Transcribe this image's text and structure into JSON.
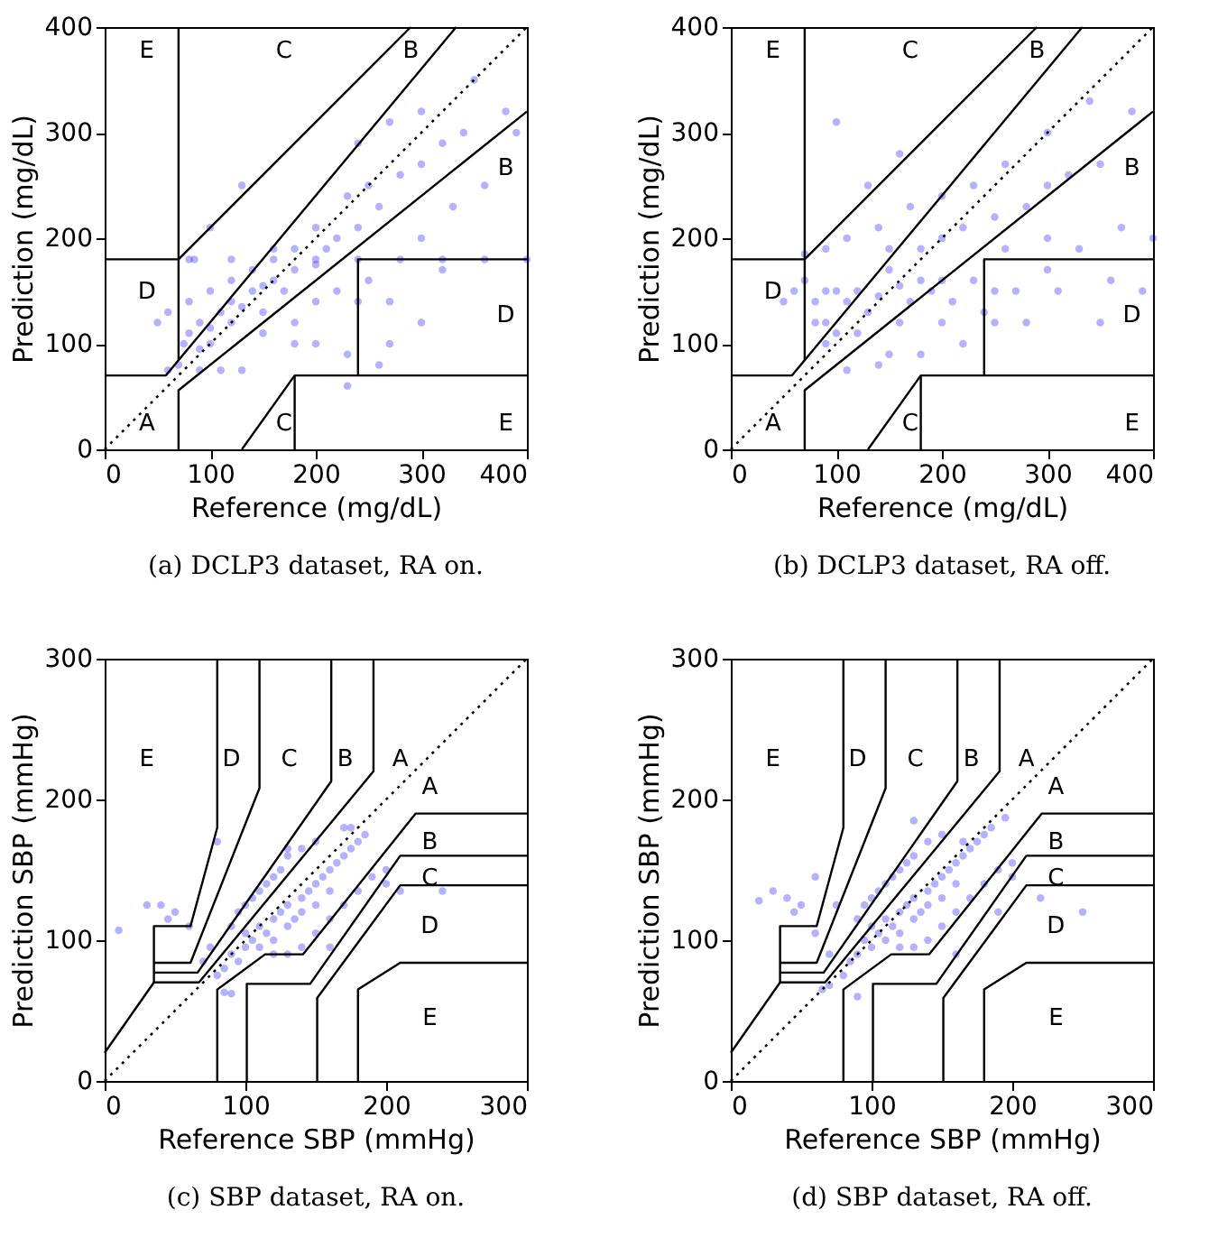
{
  "chart_data": [
    {
      "type": "scatter",
      "title": "(a) DCLP3 dataset, RA on.",
      "xlabel": "Reference (mg/dL)",
      "ylabel": "Prediction (mg/dL)",
      "xlim": [
        0,
        400
      ],
      "ylim": [
        0,
        400
      ],
      "xticks": [
        0,
        100,
        200,
        300,
        400
      ],
      "yticks": [
        0,
        100,
        200,
        300,
        400
      ],
      "series": [
        {
          "color": "#0000ff",
          "marker": "circle",
          "x": [
            80,
            90,
            100,
            110,
            120,
            130,
            140,
            150,
            160,
            170,
            180,
            100,
            90,
            120,
            150,
            200,
            210,
            220,
            240,
            260,
            280,
            300,
            320,
            340,
            300,
            250,
            230,
            200,
            180,
            160,
            140,
            120,
            100,
            80,
            60,
            50,
            75,
            70,
            90,
            110,
            130,
            60,
            150,
            180,
            200,
            220,
            240,
            250,
            270,
            200,
            230,
            180,
            80,
            120,
            160,
            200,
            240,
            280,
            320,
            360,
            400,
            350,
            380,
            330,
            360,
            390,
            300,
            270,
            240,
            130,
            100,
            85,
            270,
            300,
            260,
            230,
            320
          ],
          "values": [
            110,
            120,
            115,
            130,
            140,
            135,
            150,
            155,
            160,
            150,
            170,
            100,
            95,
            120,
            130,
            175,
            190,
            200,
            210,
            230,
            260,
            270,
            290,
            300,
            320,
            250,
            240,
            210,
            190,
            190,
            170,
            160,
            150,
            140,
            130,
            120,
            100,
            80,
            75,
            75,
            75,
            75,
            110,
            120,
            140,
            150,
            140,
            160,
            140,
            100,
            90,
            100,
            180,
            180,
            180,
            180,
            180,
            180,
            180,
            180,
            180,
            350,
            320,
            230,
            250,
            300,
            200,
            310,
            290,
            250,
            210,
            180,
            100,
            120,
            80,
            60,
            170
          ]
        },
        {
          "type": "line",
          "color": "#000000",
          "line_style": "solid",
          "x": [
            0,
            58,
            333
          ],
          "values": [
            70,
            70,
            400
          ]
        },
        {
          "type": "line",
          "color": "#000000",
          "line_style": "solid",
          "x": [
            70,
            70,
            400
          ],
          "values": [
            0,
            56,
            320
          ]
        },
        {
          "type": "line",
          "color": "#000000",
          "line_style": "solid",
          "x": [
            70,
            70
          ],
          "values": [
            84,
            400
          ]
        },
        {
          "type": "line",
          "color": "#000000",
          "line_style": "solid",
          "x": [
            0,
            70,
            290
          ],
          "values": [
            180,
            180,
            400
          ]
        },
        {
          "type": "line",
          "color": "#000000",
          "line_style": "solid",
          "x": [
            130,
            180,
            400
          ],
          "values": [
            0,
            70,
            70
          ]
        },
        {
          "type": "line",
          "color": "#000000",
          "line_style": "solid",
          "x": [
            180,
            180
          ],
          "values": [
            0,
            70
          ]
        },
        {
          "type": "line",
          "color": "#000000",
          "line_style": "solid",
          "x": [
            240,
            240,
            400
          ],
          "values": [
            70,
            180,
            180
          ]
        },
        {
          "type": "line",
          "color": "#000000",
          "line_style": "dotted",
          "x": [
            0,
            400
          ],
          "values": [
            0,
            400
          ]
        }
      ],
      "annotations": [
        "E",
        "C",
        "B",
        "B",
        "D",
        "D",
        "A",
        "C",
        "E"
      ]
    },
    {
      "type": "scatter",
      "title": "(b) DCLP3 dataset, RA off.",
      "xlabel": "Reference (mg/dL)",
      "ylabel": "Prediction (mg/dL)",
      "xlim": [
        0,
        400
      ],
      "ylim": [
        0,
        400
      ],
      "xticks": [
        0,
        100,
        200,
        300,
        400
      ],
      "yticks": [
        0,
        100,
        200,
        300,
        400
      ],
      "series": [
        {
          "color": "#0000ff",
          "marker": "circle",
          "x": [
            100,
            120,
            140,
            160,
            180,
            200,
            150,
            130,
            110,
            90,
            80,
            70,
            60,
            50,
            170,
            190,
            210,
            230,
            250,
            270,
            240,
            200,
            160,
            120,
            100,
            90,
            150,
            180,
            200,
            220,
            250,
            280,
            300,
            320,
            350,
            380,
            340,
            300,
            260,
            230,
            200,
            170,
            140,
            110,
            90,
            70,
            130,
            100,
            160,
            300,
            330,
            360,
            390,
            400,
            370,
            310,
            280,
            250,
            220,
            180,
            150,
            90,
            80,
            110,
            140,
            350,
            300,
            260
          ],
          "values": [
            150,
            150,
            145,
            155,
            160,
            160,
            170,
            130,
            140,
            150,
            140,
            160,
            150,
            140,
            140,
            150,
            140,
            160,
            150,
            150,
            130,
            120,
            120,
            110,
            110,
            120,
            190,
            190,
            200,
            210,
            220,
            230,
            250,
            260,
            270,
            320,
            330,
            300,
            270,
            250,
            240,
            230,
            210,
            200,
            190,
            185,
            250,
            310,
            280,
            200,
            190,
            160,
            150,
            200,
            210,
            150,
            120,
            120,
            100,
            90,
            90,
            100,
            120,
            75,
            80,
            120,
            170,
            190
          ]
        },
        {
          "type": "line",
          "color": "#000000",
          "line_style": "solid",
          "x": [
            0,
            58,
            333
          ],
          "values": [
            70,
            70,
            400
          ]
        },
        {
          "type": "line",
          "color": "#000000",
          "line_style": "solid",
          "x": [
            70,
            70,
            400
          ],
          "values": [
            0,
            56,
            320
          ]
        },
        {
          "type": "line",
          "color": "#000000",
          "line_style": "solid",
          "x": [
            70,
            70
          ],
          "values": [
            84,
            400
          ]
        },
        {
          "type": "line",
          "color": "#000000",
          "line_style": "solid",
          "x": [
            0,
            70,
            290
          ],
          "values": [
            180,
            180,
            400
          ]
        },
        {
          "type": "line",
          "color": "#000000",
          "line_style": "solid",
          "x": [
            130,
            180,
            400
          ],
          "values": [
            0,
            70,
            70
          ]
        },
        {
          "type": "line",
          "color": "#000000",
          "line_style": "solid",
          "x": [
            180,
            180
          ],
          "values": [
            0,
            70
          ]
        },
        {
          "type": "line",
          "color": "#000000",
          "line_style": "solid",
          "x": [
            240,
            240,
            400
          ],
          "values": [
            70,
            180,
            180
          ]
        },
        {
          "type": "line",
          "color": "#000000",
          "line_style": "dotted",
          "x": [
            0,
            400
          ],
          "values": [
            0,
            400
          ]
        }
      ],
      "annotations": [
        "E",
        "C",
        "B",
        "B",
        "D",
        "D",
        "A",
        "C",
        "E"
      ]
    },
    {
      "type": "scatter",
      "title": "(c) SBP dataset, RA on.",
      "xlabel": "Reference SBP (mmHg)",
      "ylabel": "Prediction SBP (mmHg)",
      "xlim": [
        0,
        300
      ],
      "ylim": [
        0,
        300
      ],
      "xticks": [
        0,
        100,
        200,
        300
      ],
      "yticks": [
        0,
        100,
        200,
        300
      ],
      "series": [
        {
          "color": "#0000ff",
          "marker": "circle",
          "x": [
            80,
            85,
            90,
            95,
            100,
            100,
            105,
            110,
            110,
            115,
            120,
            120,
            125,
            130,
            130,
            135,
            140,
            140,
            145,
            150,
            150,
            155,
            160,
            160,
            165,
            170,
            175,
            180,
            185,
            90,
            95,
            100,
            105,
            110,
            115,
            120,
            125,
            130,
            140,
            150,
            120,
            130,
            140,
            150,
            160,
            170,
            180,
            190,
            200,
            70,
            75,
            60,
            50,
            40,
            30,
            45,
            10,
            80,
            130,
            200,
            210,
            240,
            160,
            85,
            90,
            170,
            175
          ],
          "values": [
            75,
            80,
            90,
            85,
            95,
            105,
            100,
            110,
            95,
            105,
            115,
            100,
            120,
            125,
            110,
            115,
            130,
            120,
            135,
            140,
            125,
            145,
            150,
            135,
            155,
            160,
            165,
            170,
            175,
            110,
            120,
            125,
            130,
            135,
            140,
            145,
            150,
            160,
            165,
            170,
            90,
            90,
            95,
            105,
            115,
            125,
            135,
            145,
            150,
            85,
            95,
            110,
            120,
            125,
            125,
            115,
            107,
            170,
            165,
            140,
            135,
            135,
            95,
            63,
            62,
            180,
            180
          ]
        },
        {
          "type": "line",
          "color": "#000000",
          "line_style": "solid",
          "x": [
            0,
            35,
            67,
            191,
            191
          ],
          "values": [
            20,
            70,
            70,
            220,
            300
          ]
        },
        {
          "type": "line",
          "color": "#000000",
          "line_style": "solid",
          "x": [
            35,
            35,
            61,
            80,
            80
          ],
          "values": [
            70,
            110,
            110,
            180,
            300
          ]
        },
        {
          "type": "line",
          "color": "#000000",
          "line_style": "solid",
          "x": [
            35,
            66,
            161,
            161
          ],
          "values": [
            77,
            77,
            213,
            300
          ]
        },
        {
          "type": "line",
          "color": "#000000",
          "line_style": "solid",
          "x": [
            35,
            61,
            110,
            110
          ],
          "values": [
            84,
            84,
            208,
            300
          ]
        },
        {
          "type": "line",
          "color": "#000000",
          "line_style": "solid",
          "x": [
            80,
            80,
            114,
            141,
            221,
            300
          ],
          "values": [
            0,
            65,
            90,
            90,
            190,
            190
          ]
        },
        {
          "type": "line",
          "color": "#000000",
          "line_style": "solid",
          "x": [
            101,
            101,
            146,
            210,
            300
          ],
          "values": [
            0,
            69,
            69,
            160,
            160
          ]
        },
        {
          "type": "line",
          "color": "#000000",
          "line_style": "solid",
          "x": [
            151,
            151,
            210,
            300
          ],
          "values": [
            0,
            59,
            139,
            139
          ]
        },
        {
          "type": "line",
          "color": "#000000",
          "line_style": "solid",
          "x": [
            180,
            180,
            210,
            300
          ],
          "values": [
            0,
            65,
            84,
            84
          ]
        },
        {
          "type": "line",
          "color": "#000000",
          "line_style": "dotted",
          "x": [
            0,
            300
          ],
          "values": [
            0,
            300
          ]
        }
      ],
      "annotations": [
        "E",
        "D",
        "C",
        "B",
        "A",
        "A",
        "B",
        "C",
        "D",
        "E"
      ]
    },
    {
      "type": "scatter",
      "title": "(d) SBP dataset, RA off.",
      "xlabel": "Reference SBP (mmHg)",
      "ylabel": "Prediction SBP (mmHg)",
      "xlim": [
        0,
        300
      ],
      "ylim": [
        0,
        300
      ],
      "xticks": [
        0,
        100,
        200,
        300
      ],
      "yticks": [
        0,
        100,
        200,
        300
      ],
      "series": [
        {
          "color": "#0000ff",
          "marker": "circle",
          "x": [
            80,
            85,
            90,
            95,
            100,
            100,
            105,
            110,
            110,
            115,
            120,
            120,
            125,
            130,
            130,
            135,
            140,
            140,
            145,
            150,
            150,
            155,
            160,
            160,
            165,
            170,
            175,
            180,
            185,
            90,
            95,
            100,
            105,
            110,
            115,
            120,
            125,
            130,
            140,
            150,
            120,
            130,
            140,
            150,
            160,
            170,
            180,
            190,
            200,
            70,
            60,
            50,
            40,
            30,
            45,
            20,
            60,
            75,
            130,
            165,
            200,
            220,
            250,
            160,
            65,
            70,
            90,
            195,
            190
          ],
          "values": [
            75,
            85,
            90,
            100,
            95,
            110,
            105,
            115,
            100,
            110,
            120,
            105,
            125,
            130,
            115,
            120,
            135,
            125,
            140,
            145,
            130,
            150,
            155,
            140,
            160,
            165,
            170,
            175,
            180,
            115,
            125,
            130,
            135,
            140,
            145,
            150,
            155,
            160,
            170,
            175,
            95,
            95,
            100,
            110,
            120,
            130,
            140,
            150,
            155,
            90,
            105,
            125,
            130,
            135,
            120,
            128,
            145,
            125,
            185,
            170,
            145,
            130,
            120,
            90,
            65,
            68,
            60,
            187,
            120
          ]
        },
        {
          "type": "line",
          "color": "#000000",
          "line_style": "solid",
          "x": [
            0,
            35,
            67,
            191,
            191
          ],
          "values": [
            20,
            70,
            70,
            220,
            300
          ]
        },
        {
          "type": "line",
          "color": "#000000",
          "line_style": "solid",
          "x": [
            35,
            35,
            61,
            80,
            80
          ],
          "values": [
            70,
            110,
            110,
            180,
            300
          ]
        },
        {
          "type": "line",
          "color": "#000000",
          "line_style": "solid",
          "x": [
            35,
            66,
            161,
            161
          ],
          "values": [
            77,
            77,
            213,
            300
          ]
        },
        {
          "type": "line",
          "color": "#000000",
          "line_style": "solid",
          "x": [
            35,
            61,
            110,
            110
          ],
          "values": [
            84,
            84,
            208,
            300
          ]
        },
        {
          "type": "line",
          "color": "#000000",
          "line_style": "solid",
          "x": [
            80,
            80,
            114,
            141,
            221,
            300
          ],
          "values": [
            0,
            65,
            90,
            90,
            190,
            190
          ]
        },
        {
          "type": "line",
          "color": "#000000",
          "line_style": "solid",
          "x": [
            101,
            101,
            146,
            210,
            300
          ],
          "values": [
            0,
            69,
            69,
            160,
            160
          ]
        },
        {
          "type": "line",
          "color": "#000000",
          "line_style": "solid",
          "x": [
            151,
            151,
            210,
            300
          ],
          "values": [
            0,
            59,
            139,
            139
          ]
        },
        {
          "type": "line",
          "color": "#000000",
          "line_style": "solid",
          "x": [
            180,
            180,
            210,
            300
          ],
          "values": [
            0,
            65,
            84,
            84
          ]
        },
        {
          "type": "line",
          "color": "#000000",
          "line_style": "dotted",
          "x": [
            0,
            300
          ],
          "values": [
            0,
            300
          ]
        }
      ],
      "annotations": [
        "E",
        "D",
        "C",
        "B",
        "A",
        "A",
        "B",
        "C",
        "D",
        "E"
      ]
    }
  ]
}
